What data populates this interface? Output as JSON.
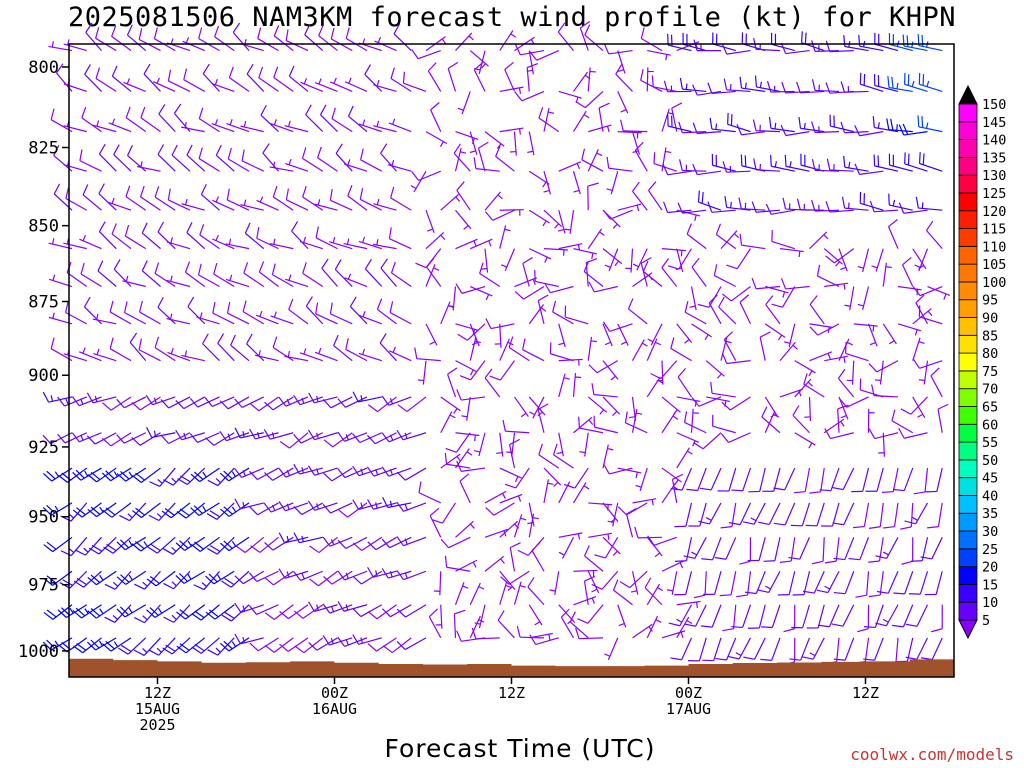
{
  "chart_data": {
    "type": "wind-barb",
    "title": "2025081506 NAM3KM forecast wind profile (kt) for KHPN",
    "xlabel": "Forecast Time (UTC)",
    "ylabel": "",
    "y_axis": {
      "scale": "pressure (hPa), decreasing upward",
      "ylim": [
        1010,
        793
      ],
      "ticks": [
        800,
        825,
        850,
        875,
        900,
        925,
        950,
        975,
        1000
      ]
    },
    "x_axis": {
      "start": "2025-08-15 06Z",
      "end": "2025-08-17 18Z",
      "tick_labels": [
        {
          "time": "2025-08-15 12Z",
          "lines": [
            "12Z",
            "15AUG",
            "2025"
          ]
        },
        {
          "time": "2025-08-16 00Z",
          "lines": [
            "00Z",
            "16AUG"
          ]
        },
        {
          "time": "2025-08-16 12Z",
          "lines": [
            "12Z"
          ]
        },
        {
          "time": "2025-08-17 00Z",
          "lines": [
            "00Z",
            "17AUG"
          ]
        },
        {
          "time": "2025-08-17 12Z",
          "lines": [
            "12Z"
          ]
        }
      ]
    },
    "colorbar": {
      "units": "kt",
      "levels": [
        5,
        10,
        15,
        20,
        25,
        30,
        35,
        40,
        45,
        50,
        55,
        60,
        65,
        70,
        75,
        80,
        85,
        90,
        95,
        100,
        105,
        110,
        115,
        120,
        125,
        130,
        135,
        140,
        145,
        150
      ],
      "colors": [
        "#8a00ff",
        "#6600ff",
        "#3a00ff",
        "#0000ff",
        "#0040ff",
        "#0070ff",
        "#0099ff",
        "#00c0ff",
        "#00e0e0",
        "#00ffc0",
        "#00ff80",
        "#00ff40",
        "#40ff00",
        "#80ff00",
        "#c0ff00",
        "#ffff00",
        "#ffe000",
        "#ffc000",
        "#ffa000",
        "#ff8c00",
        "#ff7800",
        "#ff6400",
        "#ff3c00",
        "#ff1e00",
        "#ff0000",
        "#ff0040",
        "#ff0080",
        "#ff00b0",
        "#ff00d8",
        "#ff00ff"
      ]
    },
    "terrain_color": "#a0522d",
    "wind_regimes": [
      {
        "times": "2025-08-15 06Z-18Z",
        "levels": "925-1000 hPa",
        "speed_kt": "15-25",
        "direction": "southwesterly"
      },
      {
        "times": "2025-08-15 06Z-2025-08-16 06Z",
        "levels": "800-900 hPa",
        "speed_kt": "5-12",
        "direction": "westerly to northwesterly"
      },
      {
        "times": "2025-08-16 06Z-2025-08-17 00Z",
        "levels": "all",
        "speed_kt": "5-10",
        "direction": "light and variable"
      },
      {
        "times": "2025-08-17 00Z-18Z",
        "levels": "800-850 hPa",
        "speed_kt": "10-20",
        "direction": "westerly"
      },
      {
        "times": "2025-08-17 00Z-18Z",
        "levels": "925-1000 hPa",
        "speed_kt": "8-12",
        "direction": "southerly"
      }
    ]
  },
  "credit": "coolwx.com/models"
}
